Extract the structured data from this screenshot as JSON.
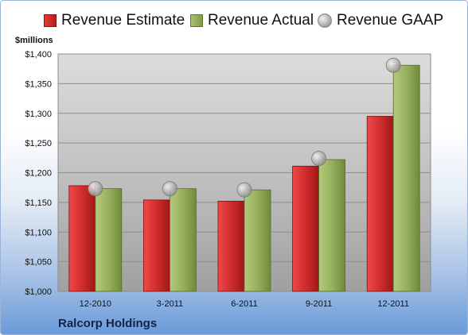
{
  "legend": {
    "estimate": "Revenue Estimate",
    "actual": "Revenue Actual",
    "gaap": "Revenue GAAP"
  },
  "units_label": "$millions",
  "company": "Ralcorp Holdings",
  "colors": {
    "estimate": "#cc2a2a",
    "actual": "#94ad5a",
    "gaap": "#b0b0b0"
  },
  "chart_data": {
    "type": "bar",
    "title": "",
    "xlabel": "",
    "ylabel": "$millions",
    "categories": [
      "12-2010",
      "3-2011",
      "6-2011",
      "9-2011",
      "12-2011"
    ],
    "series": [
      {
        "name": "Revenue Estimate",
        "values": [
          1178,
          1154,
          1152,
          1211,
          1295
        ]
      },
      {
        "name": "Revenue Actual",
        "values": [
          1173,
          1173,
          1171,
          1222,
          1381
        ]
      },
      {
        "name": "Revenue GAAP",
        "values": [
          1173,
          1173,
          1171,
          1224,
          1381
        ]
      }
    ],
    "ylim": [
      1000,
      1400
    ],
    "yticks": [
      1000,
      1050,
      1100,
      1150,
      1200,
      1250,
      1300,
      1350,
      1400
    ],
    "ytick_labels": [
      "$1,000",
      "$1,050",
      "$1,100",
      "$1,150",
      "$1,200",
      "$1,250",
      "$1,300",
      "$1,350",
      "$1,400"
    ],
    "grid": true,
    "legend_position": "top"
  }
}
